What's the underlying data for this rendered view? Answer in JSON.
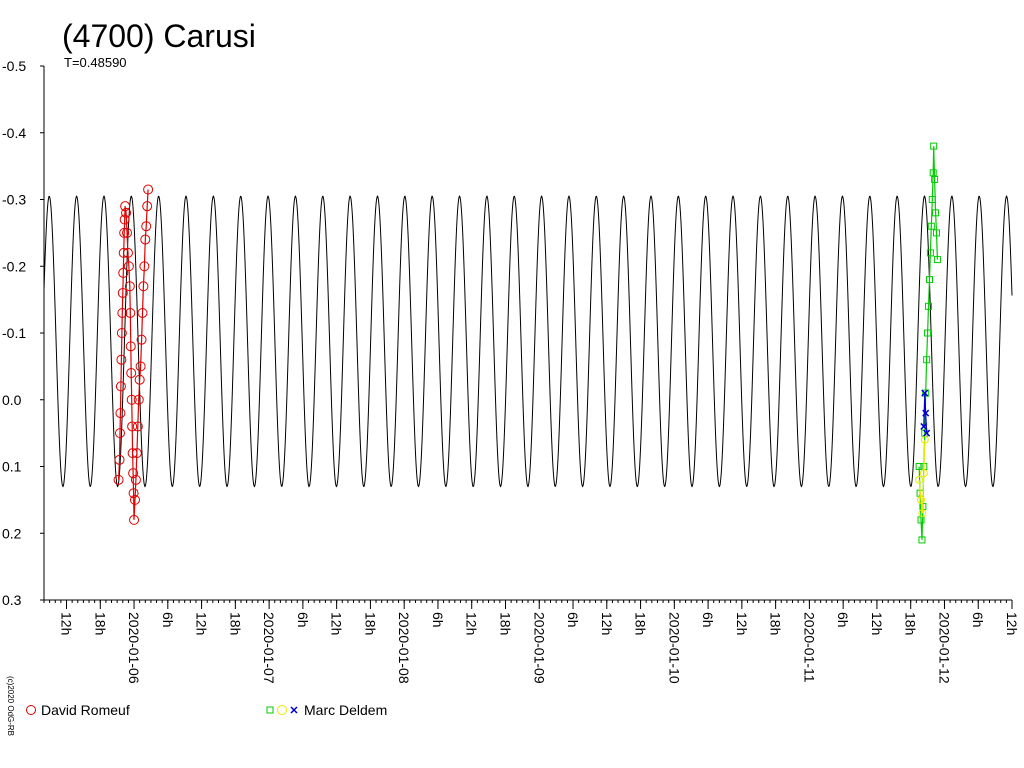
{
  "chart_data": {
    "type": "scatter",
    "title": "(4700) Carusi",
    "subtitle": "T=0.48590",
    "credit": "(c)2020 OdG-RB",
    "xlabel": "",
    "ylabel": "",
    "period_days": 0.2025,
    "xlim": [
      "2020-01-05 08:00",
      "2020-01-12 12:00"
    ],
    "ylim": [
      -0.5,
      0.3
    ],
    "y_inverted": true,
    "y_ticks": [
      "-0.5",
      "-0.4",
      "-0.3",
      "-0.2",
      "-0.1",
      "0.0",
      "0.1",
      "0.2",
      "0.3"
    ],
    "x_tick_labels": [
      {
        "label": "12h",
        "x": "2020-01-05 12:00"
      },
      {
        "label": "18h",
        "x": "2020-01-05 18:00"
      },
      {
        "label": "2020-01-06",
        "x": "2020-01-06 00:00"
      },
      {
        "label": "6h",
        "x": "2020-01-06 06:00"
      },
      {
        "label": "12h",
        "x": "2020-01-06 12:00"
      },
      {
        "label": "18h",
        "x": "2020-01-06 18:00"
      },
      {
        "label": "2020-01-07",
        "x": "2020-01-07 00:00"
      },
      {
        "label": "6h",
        "x": "2020-01-07 06:00"
      },
      {
        "label": "12h",
        "x": "2020-01-07 12:00"
      },
      {
        "label": "18h",
        "x": "2020-01-07 18:00"
      },
      {
        "label": "2020-01-08",
        "x": "2020-01-08 00:00"
      },
      {
        "label": "6h",
        "x": "2020-01-08 06:00"
      },
      {
        "label": "12h",
        "x": "2020-01-08 12:00"
      },
      {
        "label": "18h",
        "x": "2020-01-08 18:00"
      },
      {
        "label": "2020-01-09",
        "x": "2020-01-09 00:00"
      },
      {
        "label": "6h",
        "x": "2020-01-09 06:00"
      },
      {
        "label": "12h",
        "x": "2020-01-09 12:00"
      },
      {
        "label": "18h",
        "x": "2020-01-09 18:00"
      },
      {
        "label": "2020-01-10",
        "x": "2020-01-10 00:00"
      },
      {
        "label": "6h",
        "x": "2020-01-10 06:00"
      },
      {
        "label": "12h",
        "x": "2020-01-10 12:00"
      },
      {
        "label": "18h",
        "x": "2020-01-10 18:00"
      },
      {
        "label": "2020-01-11",
        "x": "2020-01-11 00:00"
      },
      {
        "label": "6h",
        "x": "2020-01-11 06:00"
      },
      {
        "label": "12h",
        "x": "2020-01-11 12:00"
      },
      {
        "label": "18h",
        "x": "2020-01-11 18:00"
      },
      {
        "label": "2020-01-12",
        "x": "2020-01-12 00:00"
      },
      {
        "label": "6h",
        "x": "2020-01-12 06:00"
      },
      {
        "label": "12h",
        "x": "2020-01-12 12:00"
      }
    ],
    "model_curve": {
      "color": "#000000",
      "min": -0.305,
      "max": 0.13
    },
    "series": [
      {
        "name": "David Romeuf",
        "marker": "circle",
        "color": "#e00000",
        "points": [
          {
            "x": "2020-01-05 21:15",
            "y": 0.12
          },
          {
            "x": "2020-01-05 21:25",
            "y": 0.09
          },
          {
            "x": "2020-01-05 21:30",
            "y": 0.05
          },
          {
            "x": "2020-01-05 21:35",
            "y": 0.02
          },
          {
            "x": "2020-01-05 21:40",
            "y": -0.02
          },
          {
            "x": "2020-01-05 21:45",
            "y": -0.06
          },
          {
            "x": "2020-01-05 21:50",
            "y": -0.1
          },
          {
            "x": "2020-01-05 21:55",
            "y": -0.13
          },
          {
            "x": "2020-01-05 22:00",
            "y": -0.16
          },
          {
            "x": "2020-01-05 22:05",
            "y": -0.19
          },
          {
            "x": "2020-01-05 22:10",
            "y": -0.22
          },
          {
            "x": "2020-01-05 22:15",
            "y": -0.25
          },
          {
            "x": "2020-01-05 22:20",
            "y": -0.27
          },
          {
            "x": "2020-01-05 22:25",
            "y": -0.29
          },
          {
            "x": "2020-01-05 22:35",
            "y": -0.28
          },
          {
            "x": "2020-01-05 22:45",
            "y": -0.25
          },
          {
            "x": "2020-01-05 22:55",
            "y": -0.22
          },
          {
            "x": "2020-01-05 23:05",
            "y": -0.2
          },
          {
            "x": "2020-01-05 23:15",
            "y": -0.17
          },
          {
            "x": "2020-01-05 23:20",
            "y": -0.13
          },
          {
            "x": "2020-01-05 23:25",
            "y": -0.08
          },
          {
            "x": "2020-01-05 23:30",
            "y": -0.04
          },
          {
            "x": "2020-01-05 23:35",
            "y": 0.0
          },
          {
            "x": "2020-01-05 23:40",
            "y": 0.04
          },
          {
            "x": "2020-01-05 23:45",
            "y": 0.08
          },
          {
            "x": "2020-01-05 23:50",
            "y": 0.11
          },
          {
            "x": "2020-01-05 23:55",
            "y": 0.14
          },
          {
            "x": "2020-01-06 00:00",
            "y": 0.18
          },
          {
            "x": "2020-01-06 00:10",
            "y": 0.15
          },
          {
            "x": "2020-01-06 00:20",
            "y": 0.12
          },
          {
            "x": "2020-01-06 00:30",
            "y": 0.08
          },
          {
            "x": "2020-01-06 00:40",
            "y": 0.04
          },
          {
            "x": "2020-01-06 00:50",
            "y": 0.0
          },
          {
            "x": "2020-01-06 01:00",
            "y": -0.03
          },
          {
            "x": "2020-01-06 01:10",
            "y": -0.05
          },
          {
            "x": "2020-01-06 01:20",
            "y": -0.09
          },
          {
            "x": "2020-01-06 01:30",
            "y": -0.13
          },
          {
            "x": "2020-01-06 01:40",
            "y": -0.17
          },
          {
            "x": "2020-01-06 01:50",
            "y": -0.2
          },
          {
            "x": "2020-01-06 02:00",
            "y": -0.24
          },
          {
            "x": "2020-01-06 02:10",
            "y": -0.26
          },
          {
            "x": "2020-01-06 02:20",
            "y": -0.29
          },
          {
            "x": "2020-01-06 02:30",
            "y": -0.315
          }
        ]
      },
      {
        "name": "Marc Deldem",
        "marker": "square",
        "color": "#00cc00",
        "points": [
          {
            "x": "2020-01-11 19:30",
            "y": 0.1
          },
          {
            "x": "2020-01-11 19:40",
            "y": 0.14
          },
          {
            "x": "2020-01-11 19:50",
            "y": 0.18
          },
          {
            "x": "2020-01-11 20:00",
            "y": 0.21
          },
          {
            "x": "2020-01-11 20:10",
            "y": 0.16
          },
          {
            "x": "2020-01-11 20:20",
            "y": 0.1
          },
          {
            "x": "2020-01-11 20:30",
            "y": 0.05
          },
          {
            "x": "2020-01-11 20:40",
            "y": -0.01
          },
          {
            "x": "2020-01-11 20:50",
            "y": -0.06
          },
          {
            "x": "2020-01-11 21:00",
            "y": -0.1
          },
          {
            "x": "2020-01-11 21:10",
            "y": -0.14
          },
          {
            "x": "2020-01-11 21:20",
            "y": -0.18
          },
          {
            "x": "2020-01-11 21:30",
            "y": -0.22
          },
          {
            "x": "2020-01-11 21:40",
            "y": -0.26
          },
          {
            "x": "2020-01-11 21:50",
            "y": -0.3
          },
          {
            "x": "2020-01-11 22:00",
            "y": -0.34
          },
          {
            "x": "2020-01-11 22:05",
            "y": -0.38
          },
          {
            "x": "2020-01-11 22:15",
            "y": -0.33
          },
          {
            "x": "2020-01-11 22:25",
            "y": -0.28
          },
          {
            "x": "2020-01-11 22:35",
            "y": -0.25
          },
          {
            "x": "2020-01-11 22:45",
            "y": -0.21
          }
        ]
      },
      {
        "name": "Marc Deldem",
        "marker": "circle",
        "color": "#e8e800",
        "points": [
          {
            "x": "2020-01-11 19:30",
            "y": 0.12
          },
          {
            "x": "2020-01-11 19:50",
            "y": 0.15
          },
          {
            "x": "2020-01-11 20:05",
            "y": 0.17
          },
          {
            "x": "2020-01-11 20:20",
            "y": 0.11
          },
          {
            "x": "2020-01-11 20:30",
            "y": 0.06
          }
        ]
      },
      {
        "name": "Marc Deldem",
        "marker": "x",
        "color": "#0000cc",
        "points": [
          {
            "x": "2020-01-11 20:20",
            "y": 0.04
          },
          {
            "x": "2020-01-11 20:30",
            "y": -0.01
          },
          {
            "x": "2020-01-11 20:40",
            "y": 0.02
          },
          {
            "x": "2020-01-11 20:50",
            "y": 0.05
          }
        ]
      }
    ],
    "legend": [
      {
        "label": "David Romeuf",
        "markers": [
          "circle"
        ],
        "colors": [
          "#e00000"
        ],
        "position": "bottom-left"
      },
      {
        "label": "Marc Deldem",
        "markers": [
          "square",
          "circle",
          "x"
        ],
        "colors": [
          "#00cc00",
          "#e8e800",
          "#0000cc"
        ],
        "position": "bottom-center"
      }
    ],
    "grid": false
  }
}
